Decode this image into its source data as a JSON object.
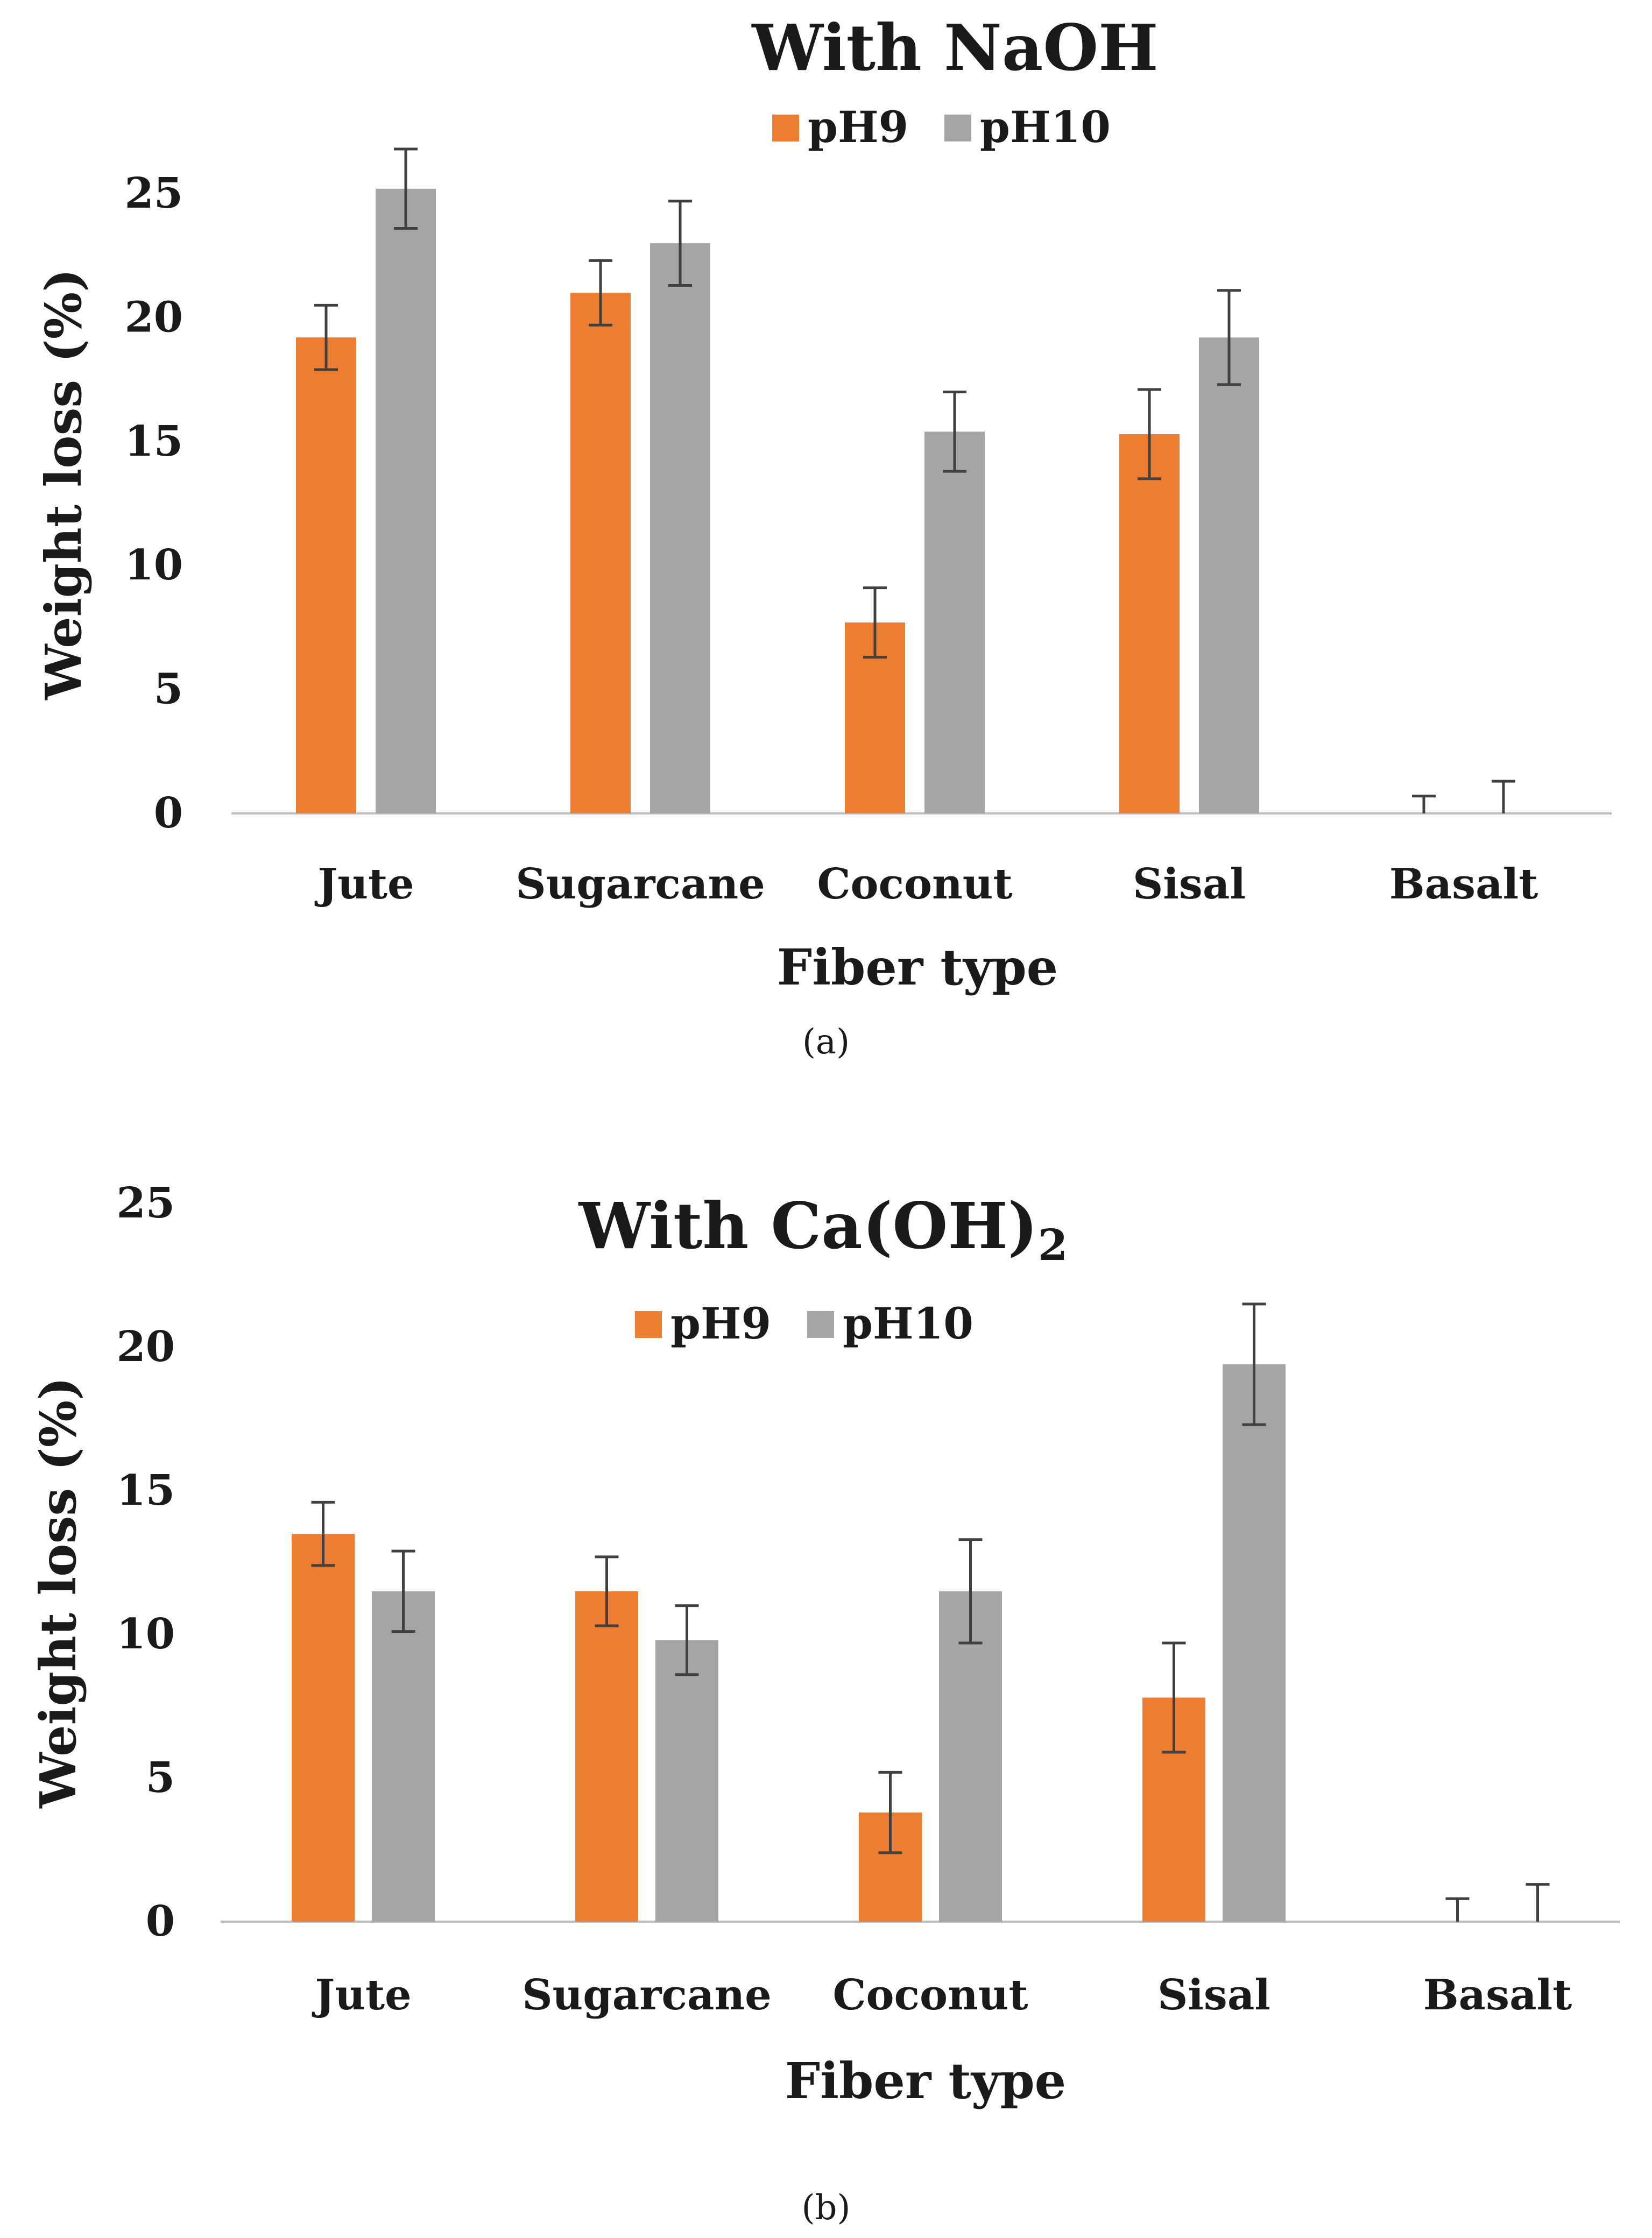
{
  "chart_data": [
    {
      "type": "bar",
      "title": "With NaOH",
      "xlabel": "Fiber type",
      "ylabel": "Weight loss (%)",
      "ylim": [
        0,
        25
      ],
      "yticks": [
        0,
        5,
        10,
        15,
        20,
        25
      ],
      "categories": [
        "Jute",
        "Sugarcane",
        "Coconut",
        "Sisal",
        "Basalt"
      ],
      "series": [
        {
          "name": "pH9",
          "color": "#ED7D31",
          "values": [
            19.2,
            21.0,
            7.7,
            15.3,
            0.0
          ],
          "errors": [
            1.3,
            1.3,
            1.4,
            1.8,
            0.7
          ]
        },
        {
          "name": "pH10",
          "color": "#A5A5A5",
          "values": [
            25.2,
            23.0,
            15.4,
            19.2,
            0.0
          ],
          "errors": [
            1.6,
            1.7,
            1.6,
            1.9,
            1.3
          ]
        }
      ],
      "legend": "top-center",
      "grid": false,
      "panel_label": "(a)"
    },
    {
      "type": "bar",
      "title": "With Ca(OH)",
      "title_subscript": "2",
      "xlabel": "Fiber type",
      "ylabel": "Weight loss (%)",
      "ylim": [
        0,
        25
      ],
      "yticks": [
        0,
        5,
        10,
        15,
        20,
        25
      ],
      "categories": [
        "Jute",
        "Sugarcane",
        "Coconut",
        "Sisal",
        "Basalt"
      ],
      "series": [
        {
          "name": "pH9",
          "color": "#ED7D31",
          "values": [
            13.5,
            11.5,
            3.8,
            7.8,
            0.0
          ],
          "errors": [
            1.1,
            1.2,
            1.4,
            1.9,
            0.8
          ]
        },
        {
          "name": "pH10",
          "color": "#A5A5A5",
          "values": [
            11.5,
            9.8,
            11.5,
            19.4,
            0.0
          ],
          "errors": [
            1.4,
            1.2,
            1.8,
            2.1,
            1.3
          ]
        }
      ],
      "legend": "top-center",
      "grid": false,
      "panel_label": "(b)"
    }
  ]
}
